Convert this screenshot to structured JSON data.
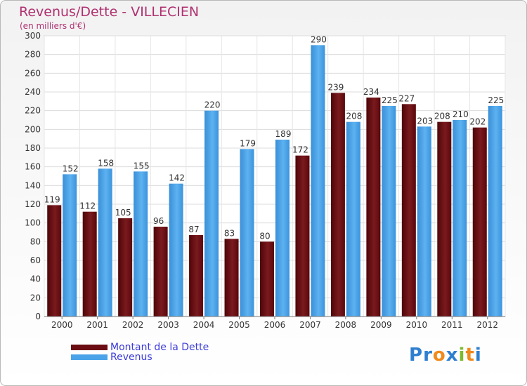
{
  "chart_data": {
    "type": "bar",
    "title": "Revenus/Dette - VILLECIEN",
    "subtitle": "(en milliers d'€)",
    "categories": [
      "2000",
      "2001",
      "2002",
      "2003",
      "2004",
      "2005",
      "2006",
      "2007",
      "2008",
      "2009",
      "2010",
      "2011",
      "2012"
    ],
    "series": [
      {
        "name": "Montant de la Dette",
        "color": "#6b0d12",
        "values": [
          119,
          112,
          105,
          96,
          87,
          83,
          80,
          172,
          239,
          234,
          227,
          208,
          202
        ]
      },
      {
        "name": "Revenus",
        "color": "#4aa3e8",
        "values": [
          152,
          158,
          155,
          142,
          220,
          179,
          189,
          290,
          208,
          225,
          203,
          210,
          225
        ]
      }
    ],
    "yticks": [
      0,
      20,
      40,
      60,
      80,
      100,
      120,
      140,
      160,
      180,
      200,
      220,
      240,
      260,
      280,
      300
    ],
    "ylim": [
      0,
      300
    ],
    "grid": true,
    "legend_position": "bottom-left"
  },
  "logo": {
    "letters": [
      {
        "ch": "P",
        "color": "#2f7fd0"
      },
      {
        "ch": "r",
        "color": "#2f7fd0"
      },
      {
        "ch": "o",
        "color": "#f08a1c"
      },
      {
        "ch": "x",
        "color": "#2f7fd0"
      },
      {
        "ch": "i",
        "color": "#7dbb2e"
      },
      {
        "ch": "t",
        "color": "#f08a1c"
      },
      {
        "ch": "i",
        "color": "#2f7fd0"
      }
    ]
  }
}
